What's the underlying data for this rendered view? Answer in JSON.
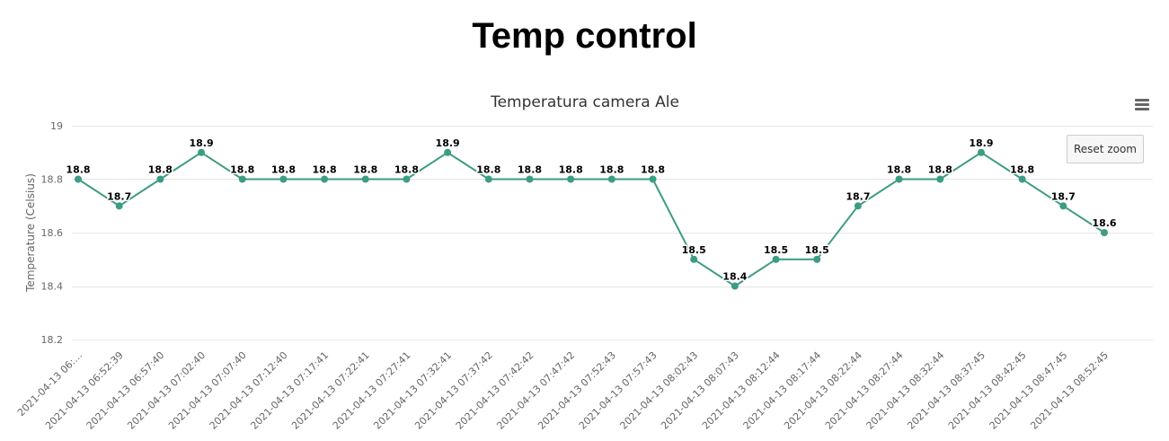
{
  "page": {
    "title": "Temp control"
  },
  "menu": {
    "icon": "hamburger-menu-icon"
  },
  "reset_zoom": {
    "label": "Reset zoom"
  },
  "colors": {
    "series": "#3d9c84",
    "grid": "#e6e6e6",
    "axis_text": "#666666"
  },
  "chart_data": {
    "type": "line",
    "title": "Temperatura camera Ale",
    "xlabel": "",
    "ylabel": "Temperature (Celsius)",
    "ylim": [
      18.2,
      19
    ],
    "yticks": [
      18.2,
      18.4,
      18.6,
      18.8,
      19
    ],
    "grid": true,
    "legend": "none",
    "data_labels": true,
    "categories": [
      "2021-04-13 06:…",
      "2021-04-13 06:52:39",
      "2021-04-13 06:57:40",
      "2021-04-13 07:02:40",
      "2021-04-13 07:07:40",
      "2021-04-13 07:12:40",
      "2021-04-13 07:17:41",
      "2021-04-13 07:22:41",
      "2021-04-13 07:27:41",
      "2021-04-13 07:32:41",
      "2021-04-13 07:37:42",
      "2021-04-13 07:42:42",
      "2021-04-13 07:47:42",
      "2021-04-13 07:52:43",
      "2021-04-13 07:57:43",
      "2021-04-13 08:02:43",
      "2021-04-13 08:07:43",
      "2021-04-13 08:12:44",
      "2021-04-13 08:17:44",
      "2021-04-13 08:22:44",
      "2021-04-13 08:27:44",
      "2021-04-13 08:32:44",
      "2021-04-13 08:37:45",
      "2021-04-13 08:42:45",
      "2021-04-13 08:47:45",
      "2021-04-13 08:52:45"
    ],
    "series": [
      {
        "values": [
          18.8,
          18.7,
          18.8,
          18.9,
          18.8,
          18.8,
          18.8,
          18.8,
          18.8,
          18.9,
          18.8,
          18.8,
          18.8,
          18.8,
          18.8,
          18.5,
          18.4,
          18.5,
          18.5,
          18.7,
          18.8,
          18.8,
          18.9,
          18.8,
          18.7,
          18.6
        ]
      }
    ]
  }
}
